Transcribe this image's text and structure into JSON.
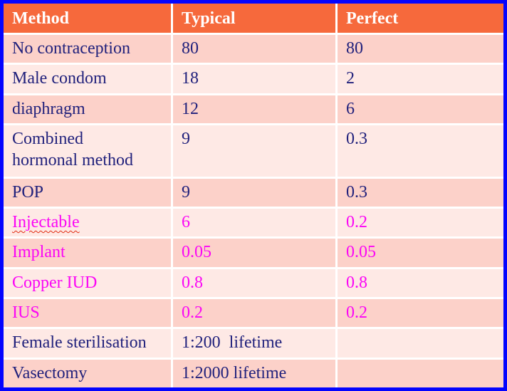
{
  "table": {
    "columns": [
      {
        "label": "Method"
      },
      {
        "label": "Typical"
      },
      {
        "label": "Perfect"
      }
    ],
    "rows": [
      {
        "method": "No contraception",
        "typical": "80",
        "perfect": "80"
      },
      {
        "method": "Male condom",
        "typical": "18",
        "perfect": "2"
      },
      {
        "method": "diaphragm",
        "typical": "12",
        "perfect": "6"
      },
      {
        "method": "Combined\nhormonal method",
        "typical": "9",
        "perfect": "0.3"
      },
      {
        "method": "POP",
        "typical": "9",
        "perfect": "0.3"
      },
      {
        "method": "Injectable",
        "typical": "6",
        "perfect": "0.2"
      },
      {
        "method": "Implant",
        "typical": "0.05",
        "perfect": "0.05"
      },
      {
        "method": "Copper IUD",
        "typical": "0.8",
        "perfect": "0.8"
      },
      {
        "method": "IUS",
        "typical": "0.2",
        "perfect": "0.2"
      },
      {
        "method": "Female sterilisation",
        "typical": "1:200  lifetime",
        "perfect": ""
      },
      {
        "method": "Vasectomy",
        "typical": "1:2000 lifetime",
        "perfect": ""
      }
    ],
    "colors": {
      "frame_border": "#0404ff",
      "header_background": "#f6693c",
      "header_text": "#ffffff",
      "row_dark_pink": "#fcd1c9",
      "row_light_pink": "#fee9e5",
      "text_navy": "#21217c",
      "text_magenta": "#fb06f5",
      "spellcheck_underline": "#e02b12"
    }
  }
}
